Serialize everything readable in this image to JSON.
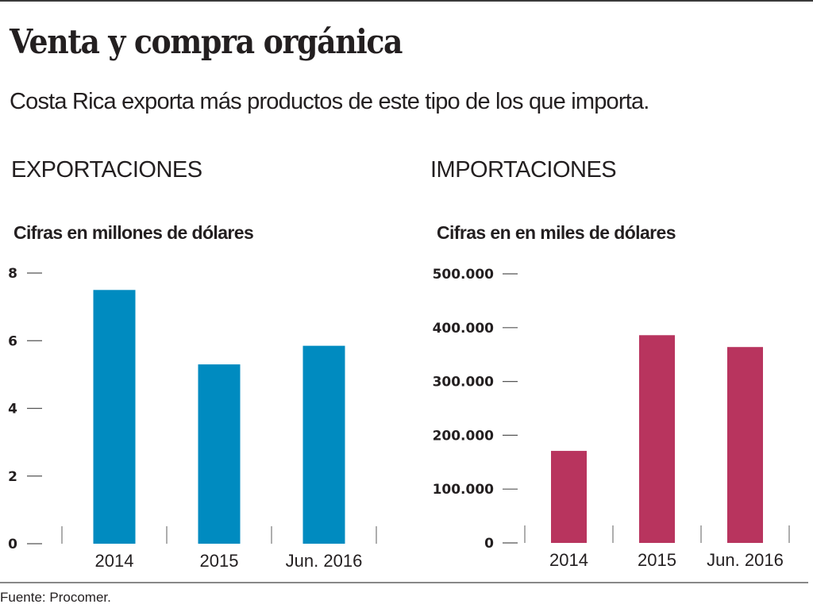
{
  "header": {
    "title": "Venta y compra orgánica",
    "subtitle": "Costa Rica exporta más productos de este tipo de los que importa."
  },
  "footer": {
    "source": "Fuente: Procomer."
  },
  "chart_data": [
    {
      "type": "bar",
      "section_title": "EXPORTACIONES",
      "title": "Cifras en millones de dólares",
      "xlabel": "",
      "ylabel": "",
      "categories": [
        "2014",
        "2015",
        "Jun. 2016"
      ],
      "values": [
        7.5,
        5.3,
        5.85
      ],
      "ylim": [
        0,
        8
      ],
      "yticks": [
        0,
        2,
        4,
        6,
        8
      ],
      "ytick_labels": [
        "0",
        "2",
        "4",
        "6",
        "8"
      ],
      "color": "#008bc0",
      "grid": false,
      "legend": "none"
    },
    {
      "type": "bar",
      "section_title": "IMPORTACIONES",
      "title": "Cifras en en miles de dólares",
      "xlabel": "",
      "ylabel": "",
      "categories": [
        "2014",
        "2015",
        "Jun. 2016"
      ],
      "values": [
        171000,
        386000,
        364000
      ],
      "ylim": [
        0,
        500000
      ],
      "yticks": [
        0,
        100000,
        200000,
        300000,
        400000,
        500000
      ],
      "ytick_labels": [
        "0",
        "100.000",
        "200.000",
        "300.000",
        "400.000",
        "500.000"
      ],
      "color": "#b8345e",
      "grid": false,
      "legend": "none"
    }
  ]
}
